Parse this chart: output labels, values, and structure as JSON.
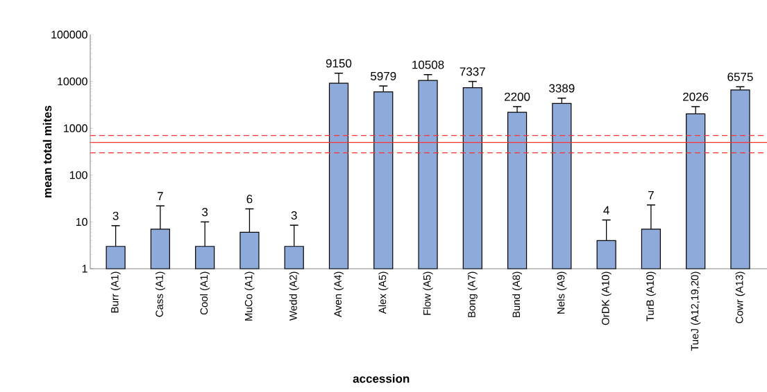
{
  "chart_data": {
    "type": "bar",
    "xlabel": "accession",
    "ylabel": "mean total mites",
    "categories": [
      "Burr (A1)",
      "Cass (A1)",
      "Cool (A1)",
      "MuCo (A1)",
      "Wedd (A2)",
      "Aven (A4)",
      "Alex (A5)",
      "Flow (A5)",
      "Bong (A7)",
      "Bund (A8)",
      "Nels (A9)",
      "OrDK (A10)",
      "TurB (A10)",
      "TueJ (A12,19,20)",
      "Cowr (A13)"
    ],
    "values": [
      3,
      7,
      3,
      6,
      3,
      9150,
      5979,
      10508,
      7337,
      2200,
      3389,
      4,
      7,
      2026,
      6575
    ],
    "errors": [
      [
        3,
        8.3
      ],
      [
        7,
        22
      ],
      [
        3,
        10
      ],
      [
        6,
        19
      ],
      [
        3,
        8.5
      ],
      [
        9150,
        15000
      ],
      [
        5979,
        8000
      ],
      [
        10508,
        14000
      ],
      [
        7337,
        10000
      ],
      [
        2200,
        2900
      ],
      [
        3389,
        4400
      ],
      [
        4,
        11
      ],
      [
        7,
        23
      ],
      [
        2026,
        2900
      ],
      [
        6575,
        7700
      ]
    ],
    "value_labels": [
      "3",
      "7",
      "3",
      "6",
      "3",
      "9150",
      "5979",
      "10508",
      "7337",
      "2200",
      "3389",
      "4",
      "7",
      "2026",
      "6575"
    ],
    "color": "#8eaadb",
    "log": true,
    "ylim": [
      1,
      100000
    ],
    "yticks": [
      1,
      10,
      100,
      1000,
      10000,
      100000
    ],
    "ref_lines": [
      {
        "axis": "y",
        "value": 500,
        "color": "#ff3333",
        "line_style": "solid"
      },
      {
        "axis": "y",
        "value": 300,
        "color": "#ff3333",
        "line_style": "dashed"
      },
      {
        "axis": "y",
        "value": 700,
        "color": "#ff3333",
        "line_style": "dashed"
      }
    ]
  }
}
